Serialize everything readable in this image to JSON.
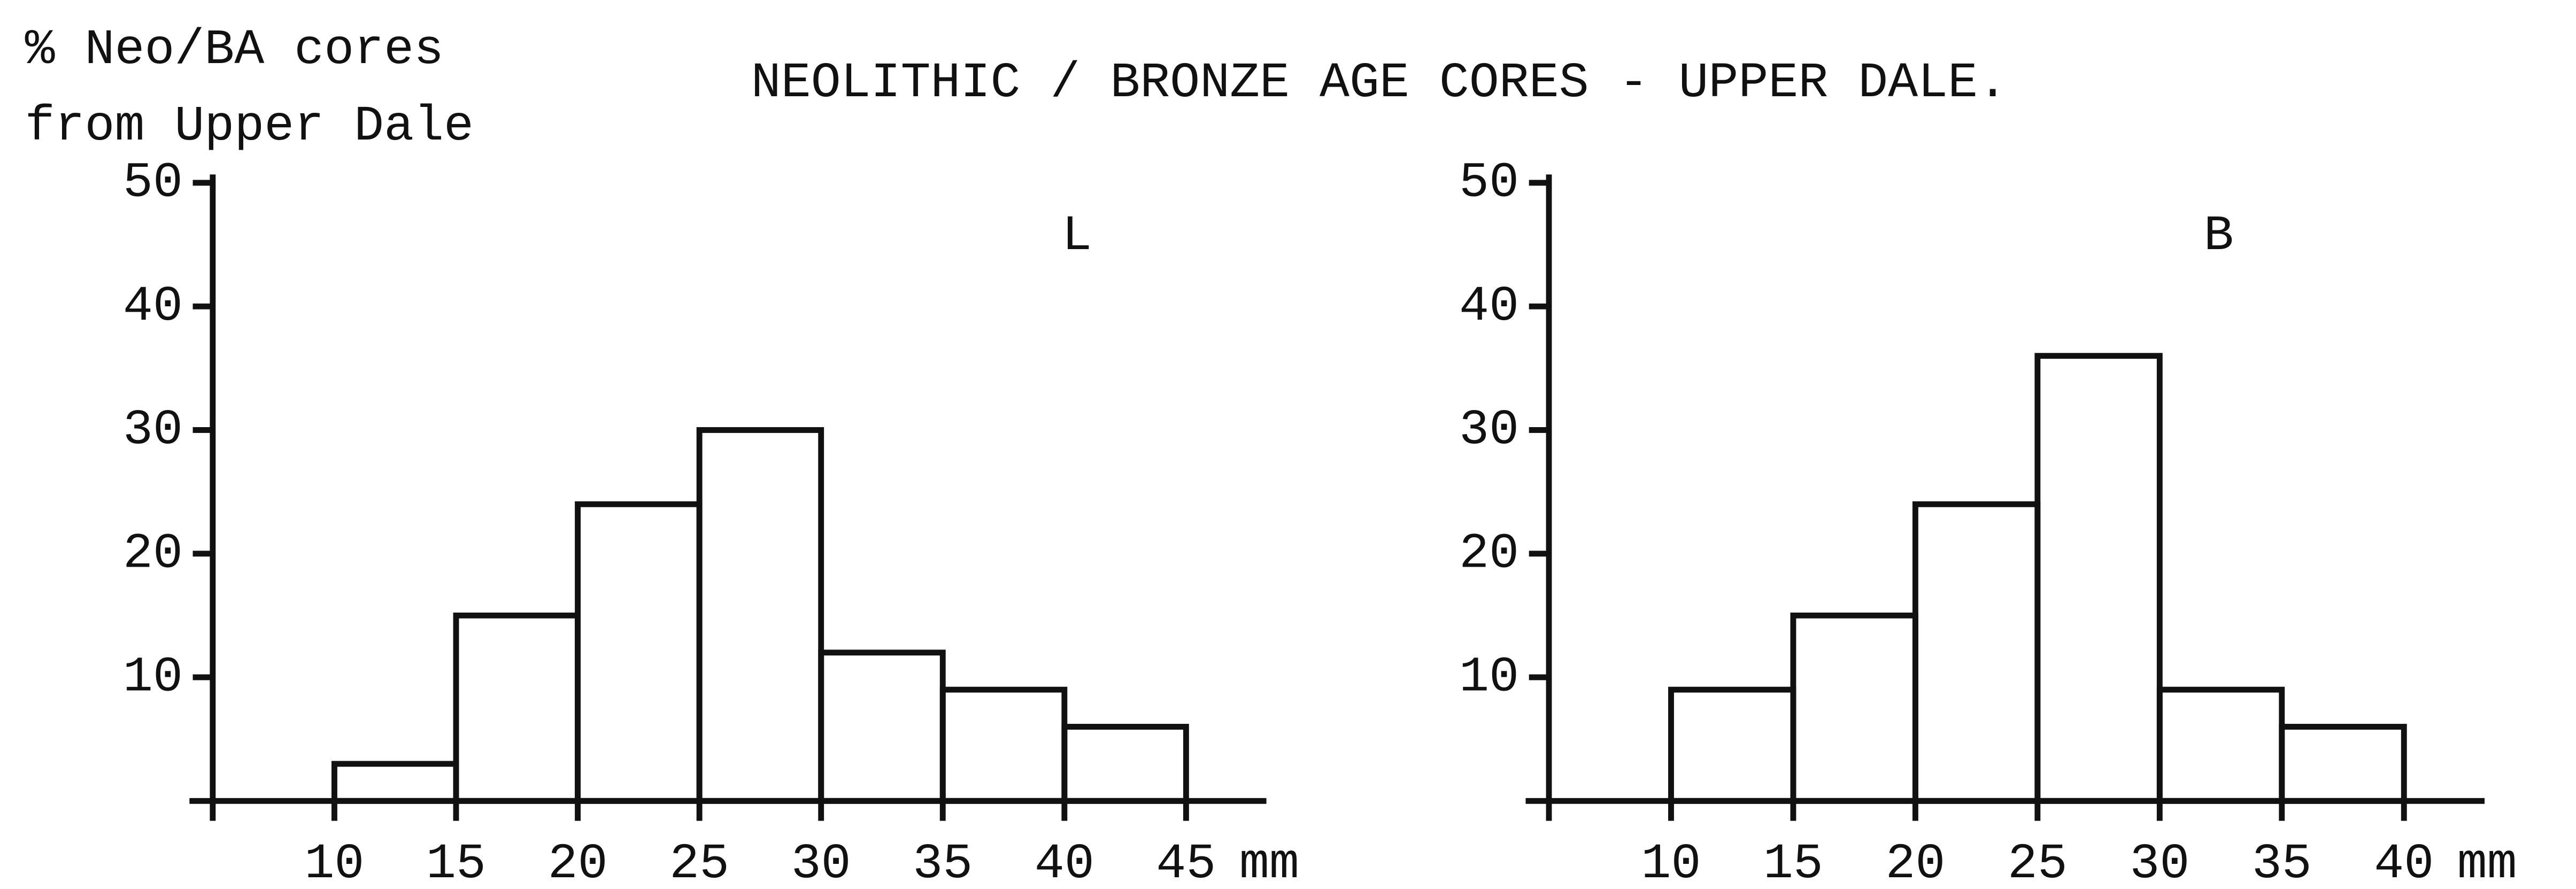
{
  "chart_data": [
    {
      "type": "histogram",
      "title": "NEOLITHIC / BRONZE AGE CORES - UPPER DALE.",
      "ylabel": [
        "% Neo/BA cores",
        "from Upper Dale"
      ],
      "annotation": "L",
      "xlabel": "mm",
      "bins": [
        10,
        15,
        20,
        25,
        30,
        35,
        40,
        45
      ],
      "counts": [
        3,
        15,
        24,
        30,
        12,
        9,
        6
      ],
      "color": "#111111",
      "xlim": [
        5,
        48.3
      ],
      "xticks": [
        10,
        15,
        20,
        25,
        30,
        35,
        40,
        45
      ],
      "ylim": [
        0,
        50
      ],
      "yticks": [
        10,
        20,
        30,
        40,
        50
      ]
    },
    {
      "type": "histogram",
      "annotation": "B",
      "xlabel": "mm",
      "bins": [
        10,
        15,
        20,
        25,
        30,
        35,
        40
      ],
      "counts": [
        9,
        15,
        24,
        36,
        9,
        6
      ],
      "color": "#111111",
      "xlim": [
        5,
        43.3
      ],
      "xticks": [
        10,
        15,
        20,
        25,
        30,
        35,
        40
      ],
      "ylim": [
        0,
        50
      ],
      "yticks": [
        10,
        20,
        30,
        40,
        50
      ]
    }
  ]
}
